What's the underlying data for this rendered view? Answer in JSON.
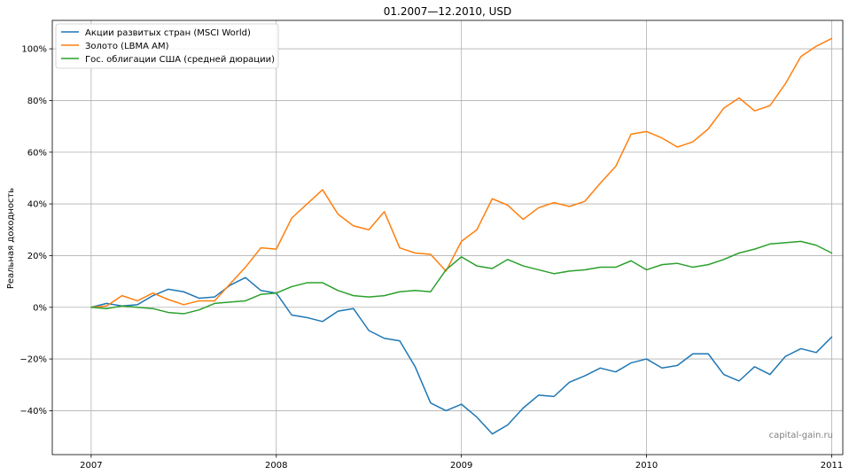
{
  "chart_data": {
    "type": "line",
    "title": "01.2007—12.2010, USD",
    "xlabel": "",
    "ylabel": "Реальная доходность",
    "xlim": [
      2006.79,
      2011.06
    ],
    "ylim": [
      -57,
      111
    ],
    "x_ticks": [
      {
        "value": 2007,
        "label": "2007"
      },
      {
        "value": 2008,
        "label": "2008"
      },
      {
        "value": 2009,
        "label": "2009"
      },
      {
        "value": 2010,
        "label": "2010"
      },
      {
        "value": 2011,
        "label": "2011"
      }
    ],
    "y_ticks": [
      {
        "value": -40,
        "label": "−40%"
      },
      {
        "value": -20,
        "label": "−20%"
      },
      {
        "value": 0,
        "label": "0%"
      },
      {
        "value": 20,
        "label": "20%"
      },
      {
        "value": 40,
        "label": "40%"
      },
      {
        "value": 60,
        "label": "60%"
      },
      {
        "value": 80,
        "label": "80%"
      },
      {
        "value": 100,
        "label": "100%"
      }
    ],
    "grid": true,
    "legend_position": "top-left",
    "watermark": "capital-gain.ru",
    "x_start": 2007,
    "x_step": 0.0833333,
    "series": [
      {
        "name": "Акции развитых стран (MSCI World)",
        "color": "#1f77b4",
        "values": [
          0,
          1.5,
          0.5,
          1,
          4.5,
          7,
          6,
          3.5,
          4,
          8.5,
          11.5,
          6.5,
          5.5,
          -3,
          -4,
          -5.5,
          -1.5,
          -0.5,
          -9,
          -12,
          -13,
          -23,
          -37,
          -40,
          -37.5,
          -42.5,
          -49,
          -45.5,
          -39,
          -34,
          -34.5,
          -29,
          -26.5,
          -23.5,
          -25,
          -21.5,
          -20,
          -23.5,
          -22.5,
          -18,
          -18,
          -26,
          -28.5,
          -23,
          -26,
          -19,
          -16,
          -17.5,
          -11.5
        ]
      },
      {
        "name": "Золото (LBMA AM)",
        "color": "#ff7f0e",
        "values": [
          0,
          0.5,
          4.5,
          2.5,
          5.5,
          3,
          1,
          2.5,
          2.5,
          9,
          15.5,
          23,
          22.5,
          34.5,
          40,
          45.5,
          36,
          31.5,
          30,
          37,
          23,
          21,
          20.5,
          14,
          25.5,
          30,
          42,
          39.5,
          34,
          38.5,
          40.5,
          39,
          41,
          48,
          54.5,
          67,
          68,
          65.5,
          62,
          64,
          69,
          77,
          81,
          76,
          78,
          86.5,
          97,
          101,
          104
        ]
      },
      {
        "name": "Гос. облигации США (средней дюрации)",
        "color": "#2ca02c",
        "values": [
          0,
          -0.5,
          0.5,
          0,
          -0.5,
          -2,
          -2.5,
          -1,
          1.5,
          2,
          2.5,
          5,
          5.5,
          8,
          9.5,
          9.5,
          6.5,
          4.5,
          4,
          4.5,
          6,
          6.5,
          6,
          14.5,
          19.5,
          16,
          15,
          18.5,
          16,
          14.5,
          13,
          14,
          14.5,
          15.5,
          15.5,
          18,
          14.5,
          16.5,
          17,
          15.5,
          16.5,
          18.5,
          21,
          22.5,
          24.5,
          25,
          25.5,
          24,
          21
        ]
      }
    ]
  }
}
